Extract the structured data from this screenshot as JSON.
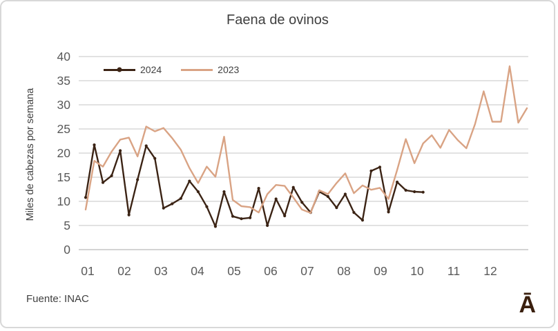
{
  "title": "Faena de ovinos",
  "source": "Fuente: INAC",
  "logo": "Ā",
  "colors": {
    "series_2024": "#3b2314",
    "series_2023": "#d9a384",
    "grid": "#d9d9d9",
    "tick_text": "#595959",
    "text": "#404040"
  },
  "chart_data": {
    "type": "line",
    "title": "Faena de ovinos",
    "ylabel": "Miles de cabezas por semana",
    "xlabel": "",
    "x_unit": "semana (weekly points), labeled by month",
    "x_tick_labels": [
      "01",
      "02",
      "03",
      "04",
      "05",
      "06",
      "07",
      "08",
      "09",
      "10",
      "11",
      "12"
    ],
    "y_ticks": [
      0,
      5,
      10,
      15,
      20,
      25,
      30,
      35,
      40
    ],
    "ylim": [
      0,
      40
    ],
    "grid": "horizontal",
    "legend_position": "top-left-inside",
    "series": [
      {
        "name": "2024",
        "color": "#3b2314",
        "marker": true,
        "values": [
          10.8,
          21.7,
          13.9,
          15.3,
          20.5,
          7.2,
          14.5,
          21.5,
          18.9,
          8.6,
          9.5,
          10.6,
          14.2,
          12.0,
          8.9,
          4.8,
          12.0,
          6.9,
          6.4,
          6.6,
          12.7,
          5.0,
          10.5,
          7.0,
          12.9,
          9.8,
          7.7,
          12.0,
          11.0,
          8.7,
          11.5,
          7.7,
          6.1,
          16.3,
          17.1,
          7.8,
          14.0,
          12.3,
          12.0,
          11.9
        ]
      },
      {
        "name": "2023",
        "color": "#d9a384",
        "marker": false,
        "values": [
          8.3,
          18.4,
          17.2,
          20.3,
          22.8,
          23.2,
          19.3,
          25.5,
          24.5,
          25.2,
          23.1,
          20.7,
          16.9,
          13.8,
          17.2,
          15.1,
          23.4,
          10.3,
          9.0,
          8.8,
          7.7,
          11.5,
          13.4,
          13.2,
          10.8,
          8.3,
          7.6,
          12.3,
          11.5,
          13.8,
          15.8,
          11.7,
          13.3,
          12.4,
          12.8,
          10.5,
          16.5,
          22.9,
          17.9,
          22.0,
          23.7,
          21.1,
          24.8,
          22.7,
          21.0,
          26.0,
          32.8,
          26.5,
          26.5,
          38.0,
          26.3,
          29.3
        ]
      }
    ]
  }
}
